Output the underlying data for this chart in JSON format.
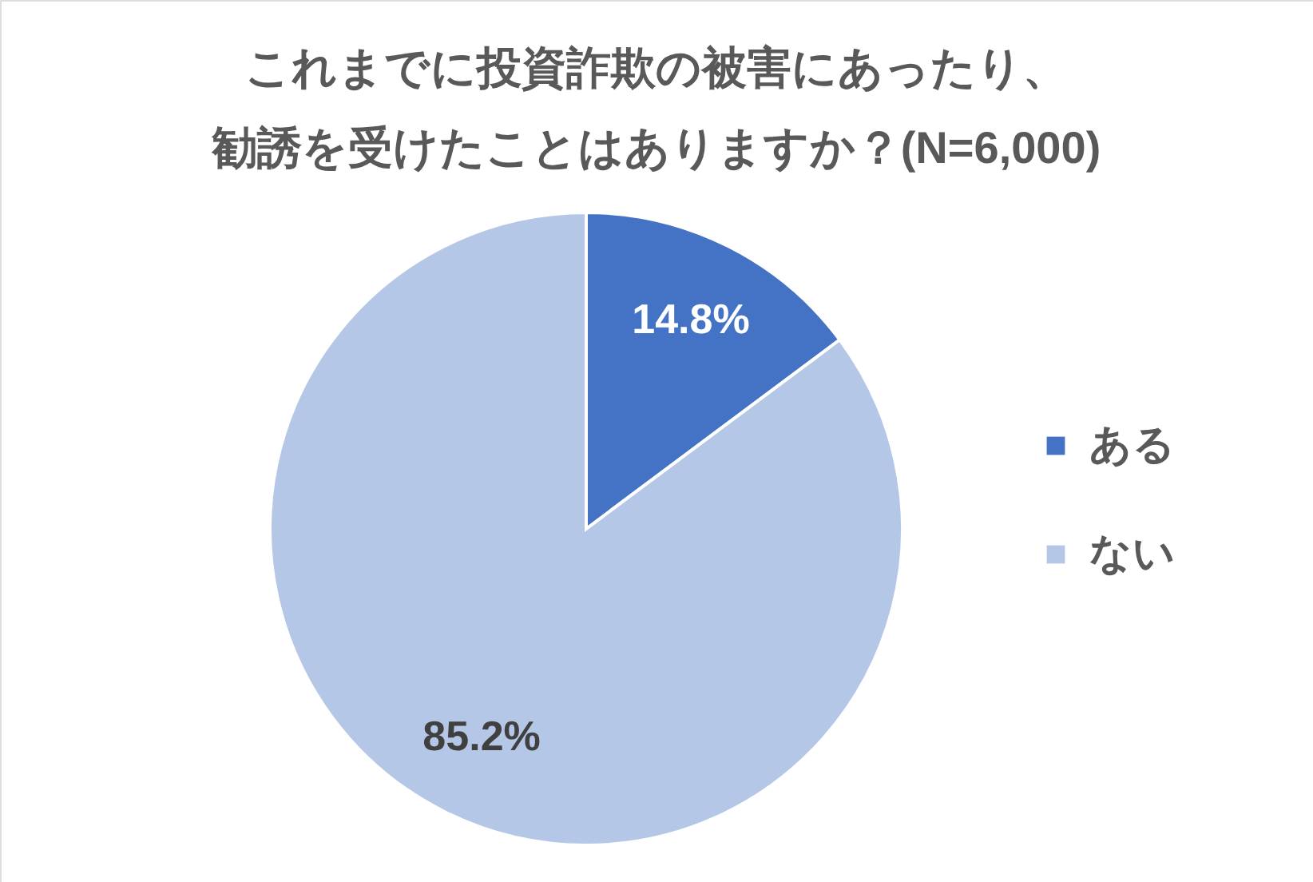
{
  "chart_data": {
    "type": "pie",
    "title": "これまでに投資詐欺の被害にあったり、勧誘を受けたことはありますか？(N=6,000)",
    "categories": [
      "ある",
      "ない"
    ],
    "values": [
      14.8,
      85.2
    ],
    "colors": [
      "#4472c4",
      "#b4c7e7"
    ],
    "value_labels": [
      "14.8%",
      "85.2%"
    ],
    "legend": "right"
  }
}
